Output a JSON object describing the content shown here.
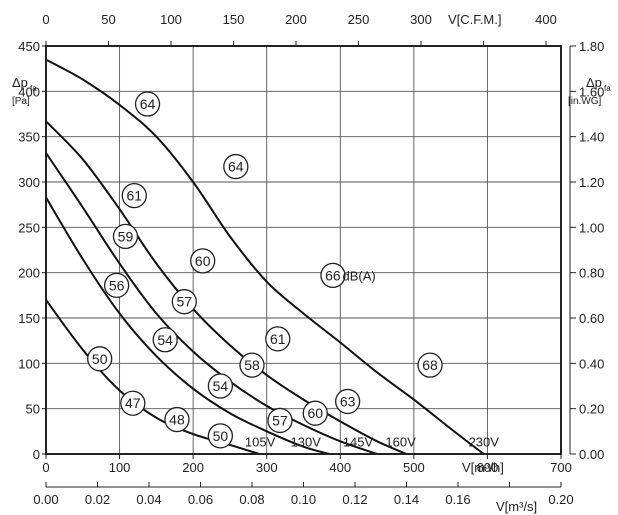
{
  "chart_data": {
    "type": "line",
    "title": "",
    "x_axes": {
      "bottom": {
        "label": "V[m³/h]",
        "range": [
          0,
          700
        ],
        "ticks": [
          0,
          100,
          200,
          300,
          400,
          500,
          600,
          700
        ],
        "tick_labels": [
          "0",
          "100",
          "200",
          "300",
          "400",
          "500",
          "600",
          "700"
        ]
      },
      "bottom2": {
        "label": "V[m³/s]",
        "range": [
          0.0,
          0.2
        ],
        "ticks": [
          0.0,
          0.02,
          0.04,
          0.06,
          0.08,
          0.1,
          0.12,
          0.14,
          0.16,
          0.18,
          0.2
        ],
        "tick_labels": [
          "0.00",
          "0.02",
          "0.04",
          "0.06",
          "0.08",
          "0.10",
          "0.12",
          "0.14",
          "0.16",
          "",
          "0.20"
        ]
      },
      "top": {
        "label": "V[C.F.M.]",
        "range": [
          0,
          412
        ],
        "ticks": [
          0,
          50,
          100,
          150,
          200,
          250,
          300,
          350,
          400
        ],
        "tick_labels": [
          "0",
          "50",
          "100",
          "150",
          "200",
          "250",
          "300",
          "",
          "400"
        ]
      }
    },
    "y_axes": {
      "left": {
        "label_main": "Δp",
        "label_sub": "fa",
        "label_unit": "[Pa]",
        "range": [
          0,
          450
        ],
        "ticks": [
          0,
          50,
          100,
          150,
          200,
          250,
          300,
          350,
          400,
          450
        ],
        "tick_labels": [
          "0",
          "50",
          "100",
          "150",
          "200",
          "250",
          "300",
          "350",
          "400",
          "450"
        ]
      },
      "right": {
        "label_main": "Δp",
        "label_sub": "fa",
        "label_unit": "[in.WG]",
        "range": [
          0,
          1.8
        ],
        "ticks": [
          0,
          0.2,
          0.4,
          0.6,
          0.8,
          1.0,
          1.2,
          1.4,
          1.6,
          1.8
        ],
        "tick_labels": [
          "0.00",
          "0.20",
          "0.40",
          "0.60",
          "0.80",
          "1.00",
          "1.20",
          "1.40",
          "1.60",
          "1.80"
        ]
      }
    },
    "grid": true,
    "series": [
      {
        "name": "105V",
        "x": [
          0,
          50,
          100,
          150,
          200,
          250,
          290
        ],
        "y": [
          170,
          115,
          70,
          40,
          22,
          10,
          0
        ]
      },
      {
        "name": "130V",
        "x": [
          0,
          50,
          100,
          150,
          200,
          250,
          300,
          350,
          385
        ],
        "y": [
          283,
          215,
          155,
          108,
          72,
          45,
          25,
          8,
          0
        ]
      },
      {
        "name": "145V",
        "x": [
          0,
          50,
          100,
          150,
          200,
          250,
          300,
          350,
          400,
          450
        ],
        "y": [
          332,
          272,
          210,
          155,
          113,
          80,
          53,
          32,
          14,
          0
        ]
      },
      {
        "name": "160V",
        "x": [
          0,
          50,
          100,
          150,
          200,
          250,
          300,
          350,
          400,
          450,
          490
        ],
        "y": [
          367,
          325,
          270,
          210,
          160,
          120,
          87,
          60,
          36,
          14,
          0
        ]
      },
      {
        "name": "230V",
        "x": [
          0,
          50,
          100,
          150,
          200,
          250,
          300,
          350,
          400,
          450,
          500,
          550,
          595
        ],
        "y": [
          435,
          413,
          385,
          350,
          300,
          240,
          190,
          155,
          123,
          90,
          60,
          28,
          0
        ]
      }
    ],
    "annotations": [
      {
        "text": "64",
        "x": 138,
        "y": 386
      },
      {
        "text": "64",
        "x": 258,
        "y": 317
      },
      {
        "text": "66",
        "x": 390,
        "y": 197
      },
      {
        "text": "68",
        "x": 522,
        "y": 98
      },
      {
        "text": "61",
        "x": 120,
        "y": 285
      },
      {
        "text": "60",
        "x": 213,
        "y": 213
      },
      {
        "text": "61",
        "x": 315,
        "y": 127
      },
      {
        "text": "63",
        "x": 410,
        "y": 58
      },
      {
        "text": "59",
        "x": 108,
        "y": 240
      },
      {
        "text": "57",
        "x": 188,
        "y": 168
      },
      {
        "text": "58",
        "x": 280,
        "y": 98
      },
      {
        "text": "60",
        "x": 366,
        "y": 45
      },
      {
        "text": "56",
        "x": 96,
        "y": 186
      },
      {
        "text": "54",
        "x": 162,
        "y": 126
      },
      {
        "text": "54",
        "x": 237,
        "y": 75
      },
      {
        "text": "57",
        "x": 318,
        "y": 37
      },
      {
        "text": "50",
        "x": 73,
        "y": 105
      },
      {
        "text": "47",
        "x": 118,
        "y": 56
      },
      {
        "text": "48",
        "x": 178,
        "y": 38
      },
      {
        "text": "50",
        "x": 237,
        "y": 20
      }
    ],
    "dba_label": {
      "text": "dB(A)",
      "x": 403,
      "y": 197
    },
    "voltage_labels": [
      {
        "text": "105V",
        "x": 291,
        "y": 14
      },
      {
        "text": "130V",
        "x": 353,
        "y": 14
      },
      {
        "text": "145V",
        "x": 424,
        "y": 14
      },
      {
        "text": "160V",
        "x": 482,
        "y": 14
      },
      {
        "text": "230V",
        "x": 595,
        "y": 14
      }
    ]
  }
}
